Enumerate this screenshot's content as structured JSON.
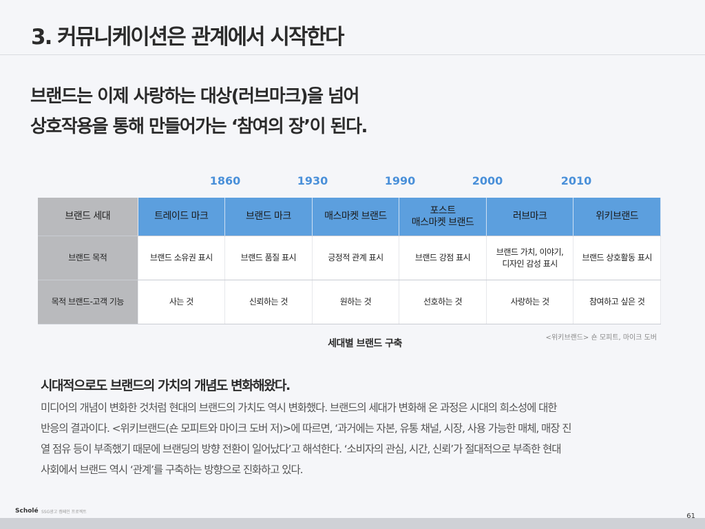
{
  "slide": {
    "title": "3. 커뮤니케이션은 관계에서 시작한다",
    "headline": [
      "브랜드는 이제 사랑하는 대상(러브마크)을 넘어",
      "상호작용을 통해 만들어가는 ‘참여의 장’이 된다."
    ]
  },
  "timeline": {
    "years": [
      "1860",
      "1930",
      "1990",
      "2000",
      "2010"
    ]
  },
  "table": {
    "row_headers": [
      "브랜드 세대",
      "브랜드 목적",
      "목적 브랜드-고객 기능"
    ],
    "generations": [
      [
        "트레이드 마크"
      ],
      [
        "브랜드 마크"
      ],
      [
        "매스마켓 브랜드"
      ],
      [
        "포스트",
        "매스마켓 브랜드"
      ],
      [
        "러브마크"
      ],
      [
        "위키브랜드"
      ]
    ],
    "purposes": [
      [
        "브랜드 소유권 표시"
      ],
      [
        "브랜드 품질 표시"
      ],
      [
        "긍정적 관계 표시"
      ],
      [
        "브랜드 강점 표시"
      ],
      [
        "브랜드 가치, 이야기,",
        "디자인 감성 표시"
      ],
      [
        "브랜드 상호활동 표시"
      ]
    ],
    "functions": [
      "사는 것",
      "신뢰하는 것",
      "원하는 것",
      "선호하는 것",
      "사랑하는 것",
      "참여하고 싶은 것"
    ]
  },
  "caption": "세대별 브랜드 구축",
  "source": "<위키브랜드> 숀 모피트, 마이크 도버",
  "subhead": "시대적으로도 브랜드의 가치의 개념도 변화해왔다.",
  "paragraph": [
    "미디어의 개념이 변화한 것처럼 현대의 브랜드의 가치도 역시 변화했다. 브랜드의 세대가 변화해 온 과정은 시대의 희소성에 대한",
    "반응의 결과이다. <위키브랜드(숀 모피트와 마이크 도버 저)>에 따르면, ‘과거에는 자본, 유통 채널, 시장, 사용 가능한 매체, 매장 진",
    "열 점유 등이 부족했기 때문에 브랜딩의 방향 전환이 일어났다’고 해석한다. ‘소비자의 관심, 시간, 신뢰’가 절대적으로 부족한 현대",
    "사회에서 브랜드 역시 ‘관계’를 구축하는 방향으로 진화하고 있다."
  ],
  "footer": {
    "logo": "Scholé",
    "subtitle": "SSG광고 캠페인 프로젝트",
    "page_number": "61"
  },
  "colors": {
    "accent": "#4a90d9",
    "header_fill": "#5c9fde",
    "row_header_fill": "#b9babd"
  }
}
